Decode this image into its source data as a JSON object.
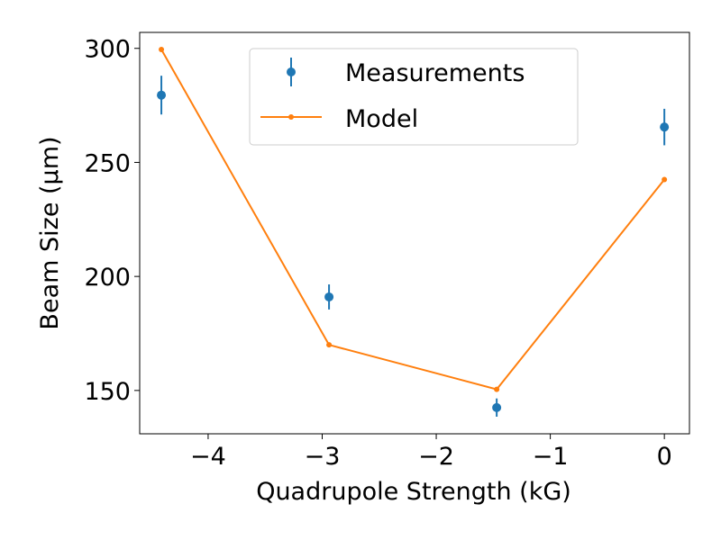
{
  "chart_data": {
    "type": "scatter",
    "title": "",
    "xlabel": "Quadrupole Strength (kG)",
    "ylabel": "Beam Size (μm)",
    "xlim": [
      -4.6,
      0.22
    ],
    "ylim": [
      131,
      307
    ],
    "x_ticks": [
      -4,
      -3,
      -2,
      -1,
      0
    ],
    "x_tick_labels": [
      "−4",
      "−3",
      "−2",
      "−1",
      "0"
    ],
    "y_ticks": [
      150,
      200,
      250,
      300
    ],
    "y_tick_labels": [
      "150",
      "200",
      "250",
      "300"
    ],
    "grid": false,
    "legend_position": "upper center",
    "series": [
      {
        "name": "Measurements",
        "kind": "errorbar",
        "color": "#1f77b4",
        "x": [
          -4.41,
          -2.94,
          -1.47,
          0.0
        ],
        "y": [
          279.5,
          191.0,
          142.5,
          265.5
        ],
        "yerr": [
          8.5,
          5.5,
          4.0,
          8.0
        ]
      },
      {
        "name": "Model",
        "kind": "line",
        "color": "#ff7f0e",
        "x": [
          -4.41,
          -2.94,
          -1.47,
          0.0
        ],
        "y": [
          299.5,
          170.0,
          150.5,
          242.5
        ]
      }
    ]
  }
}
